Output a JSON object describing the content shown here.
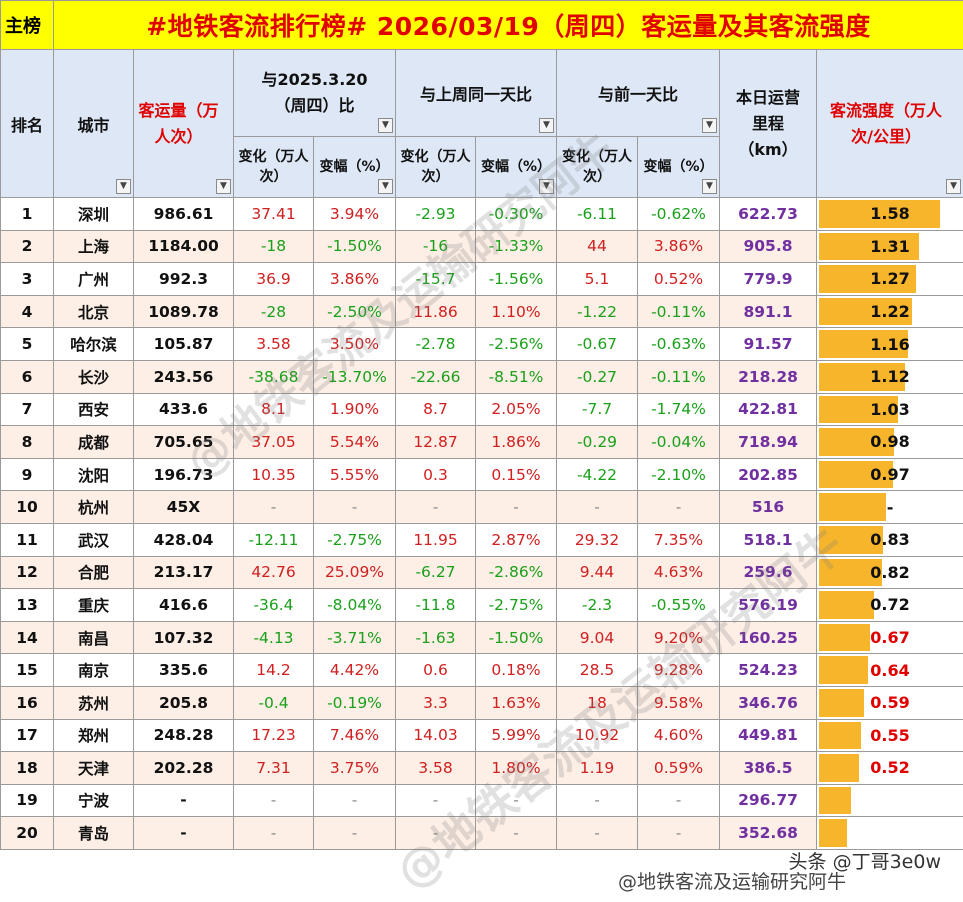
{
  "sheet_tab": "主榜",
  "title": "#地铁客流排行榜# 2026/03/19（周四）客运量及其客流强度",
  "headers": {
    "rank": "排名",
    "city": "城市",
    "volume": "客运量（万人次）",
    "yoy": "与2025.3.20（周四）比",
    "wow": "与上周同一天比",
    "dod": "与前一天比",
    "length": "本日运营里程（km）",
    "intensity": "客流强度（万人次/公里）",
    "change": "变化（万人次）",
    "change_rate": "变幅（%）"
  },
  "colors": {
    "title_bg": "#ffff00",
    "title_text": "#e00000",
    "header_bg": "#dde7f5",
    "row_alt_bg": "#fdeee6",
    "positive": "#d02020",
    "negative": "#1aa01a",
    "length_text": "#7030a0",
    "bar_fill": "#f7b52c"
  },
  "rows": [
    {
      "rank": "1",
      "city": "深圳",
      "volume": "986.61",
      "yoy_c": "37.41",
      "yoy_p": "3.94%",
      "wow_c": "-2.93",
      "wow_p": "-0.30%",
      "dod_c": "-6.11",
      "dod_p": "-0.62%",
      "km": "622.73",
      "intensity": "1.58",
      "intensity_value": 1.58
    },
    {
      "rank": "2",
      "city": "上海",
      "volume": "1184.00",
      "yoy_c": "-18",
      "yoy_p": "-1.50%",
      "wow_c": "-16",
      "wow_p": "-1.33%",
      "dod_c": "44",
      "dod_p": "3.86%",
      "km": "905.8",
      "intensity": "1.31",
      "intensity_value": 1.31
    },
    {
      "rank": "3",
      "city": "广州",
      "volume": "992.3",
      "yoy_c": "36.9",
      "yoy_p": "3.86%",
      "wow_c": "-15.7",
      "wow_p": "-1.56%",
      "dod_c": "5.1",
      "dod_p": "0.52%",
      "km": "779.9",
      "intensity": "1.27",
      "intensity_value": 1.27
    },
    {
      "rank": "4",
      "city": "北京",
      "volume": "1089.78",
      "yoy_c": "-28",
      "yoy_p": "-2.50%",
      "wow_c": "11.86",
      "wow_p": "1.10%",
      "dod_c": "-1.22",
      "dod_p": "-0.11%",
      "km": "891.1",
      "intensity": "1.22",
      "intensity_value": 1.22
    },
    {
      "rank": "5",
      "city": "哈尔滨",
      "volume": "105.87",
      "yoy_c": "3.58",
      "yoy_p": "3.50%",
      "wow_c": "-2.78",
      "wow_p": "-2.56%",
      "dod_c": "-0.67",
      "dod_p": "-0.63%",
      "km": "91.57",
      "intensity": "1.16",
      "intensity_value": 1.16
    },
    {
      "rank": "6",
      "city": "长沙",
      "volume": "243.56",
      "yoy_c": "-38.68",
      "yoy_p": "-13.70%",
      "wow_c": "-22.66",
      "wow_p": "-8.51%",
      "dod_c": "-0.27",
      "dod_p": "-0.11%",
      "km": "218.28",
      "intensity": "1.12",
      "intensity_value": 1.12
    },
    {
      "rank": "7",
      "city": "西安",
      "volume": "433.6",
      "yoy_c": "8.1",
      "yoy_p": "1.90%",
      "wow_c": "8.7",
      "wow_p": "2.05%",
      "dod_c": "-7.7",
      "dod_p": "-1.74%",
      "km": "422.81",
      "intensity": "1.03",
      "intensity_value": 1.03
    },
    {
      "rank": "8",
      "city": "成都",
      "volume": "705.65",
      "yoy_c": "37.05",
      "yoy_p": "5.54%",
      "wow_c": "12.87",
      "wow_p": "1.86%",
      "dod_c": "-0.29",
      "dod_p": "-0.04%",
      "km": "718.94",
      "intensity": "0.98",
      "intensity_value": 0.98
    },
    {
      "rank": "9",
      "city": "沈阳",
      "volume": "196.73",
      "yoy_c": "10.35",
      "yoy_p": "5.55%",
      "wow_c": "0.3",
      "wow_p": "0.15%",
      "dod_c": "-4.22",
      "dod_p": "-2.10%",
      "km": "202.85",
      "intensity": "0.97",
      "intensity_value": 0.97
    },
    {
      "rank": "10",
      "city": "杭州",
      "volume": "45X",
      "yoy_c": "-",
      "yoy_p": "-",
      "wow_c": "-",
      "wow_p": "-",
      "dod_c": "-",
      "dod_p": "-",
      "km": "516",
      "intensity": "-",
      "intensity_value": 0.88
    },
    {
      "rank": "11",
      "city": "武汉",
      "volume": "428.04",
      "yoy_c": "-12.11",
      "yoy_p": "-2.75%",
      "wow_c": "11.95",
      "wow_p": "2.87%",
      "dod_c": "29.32",
      "dod_p": "7.35%",
      "km": "518.1",
      "intensity": "0.83",
      "intensity_value": 0.83
    },
    {
      "rank": "12",
      "city": "合肥",
      "volume": "213.17",
      "yoy_c": "42.76",
      "yoy_p": "25.09%",
      "wow_c": "-6.27",
      "wow_p": "-2.86%",
      "dod_c": "9.44",
      "dod_p": "4.63%",
      "km": "259.6",
      "intensity": "0.82",
      "intensity_value": 0.82
    },
    {
      "rank": "13",
      "city": "重庆",
      "volume": "416.6",
      "yoy_c": "-36.4",
      "yoy_p": "-8.04%",
      "wow_c": "-11.8",
      "wow_p": "-2.75%",
      "dod_c": "-2.3",
      "dod_p": "-0.55%",
      "km": "576.19",
      "intensity": "0.72",
      "intensity_value": 0.72
    },
    {
      "rank": "14",
      "city": "南昌",
      "volume": "107.32",
      "yoy_c": "-4.13",
      "yoy_p": "-3.71%",
      "wow_c": "-1.63",
      "wow_p": "-1.50%",
      "dod_c": "9.04",
      "dod_p": "9.20%",
      "km": "160.25",
      "intensity": "0.67",
      "intensity_value": 0.67
    },
    {
      "rank": "15",
      "city": "南京",
      "volume": "335.6",
      "yoy_c": "14.2",
      "yoy_p": "4.42%",
      "wow_c": "0.6",
      "wow_p": "0.18%",
      "dod_c": "28.5",
      "dod_p": "9.28%",
      "km": "524.23",
      "intensity": "0.64",
      "intensity_value": 0.64
    },
    {
      "rank": "16",
      "city": "苏州",
      "volume": "205.8",
      "yoy_c": "-0.4",
      "yoy_p": "-0.19%",
      "wow_c": "3.3",
      "wow_p": "1.63%",
      "dod_c": "18",
      "dod_p": "9.58%",
      "km": "346.76",
      "intensity": "0.59",
      "intensity_value": 0.59
    },
    {
      "rank": "17",
      "city": "郑州",
      "volume": "248.28",
      "yoy_c": "17.23",
      "yoy_p": "7.46%",
      "wow_c": "14.03",
      "wow_p": "5.99%",
      "dod_c": "10.92",
      "dod_p": "4.60%",
      "km": "449.81",
      "intensity": "0.55",
      "intensity_value": 0.55
    },
    {
      "rank": "18",
      "city": "天津",
      "volume": "202.28",
      "yoy_c": "7.31",
      "yoy_p": "3.75%",
      "wow_c": "3.58",
      "wow_p": "1.80%",
      "dod_c": "1.19",
      "dod_p": "0.59%",
      "km": "386.5",
      "intensity": "0.52",
      "intensity_value": 0.52
    },
    {
      "rank": "19",
      "city": "宁波",
      "volume": "-",
      "yoy_c": "-",
      "yoy_p": "-",
      "wow_c": "-",
      "wow_p": "-",
      "dod_c": "-",
      "dod_p": "-",
      "km": "296.77",
      "intensity": "",
      "intensity_value": 0.42
    },
    {
      "rank": "20",
      "city": "青岛",
      "volume": "-",
      "yoy_c": "-",
      "yoy_p": "-",
      "wow_c": "-",
      "wow_p": "-",
      "dod_c": "-",
      "dod_p": "-",
      "km": "352.68",
      "intensity": "",
      "intensity_value": 0.36
    }
  ],
  "intensity_scale_max": 1.58,
  "watermark": "@地铁客流及运输研究阿牛",
  "credit": "头条 @丁哥3e0w"
}
